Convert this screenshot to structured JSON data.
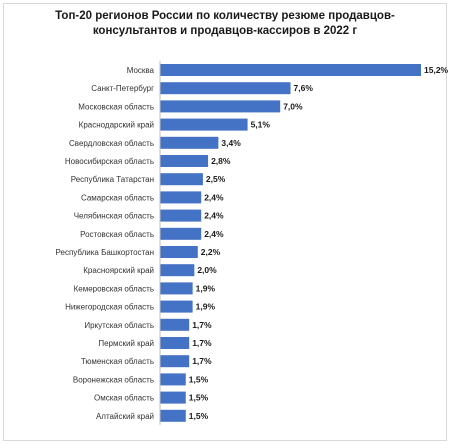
{
  "chart_data": {
    "type": "bar",
    "orientation": "horizontal",
    "title_lines": [
      "Топ-20 регионов России по количеству резюме продавцов-",
      "консультантов и продавцов-кассиров  в 2022 г"
    ],
    "categories": [
      "Москва",
      "Санкт-Петербург",
      "Московская область",
      "Краснодарский край",
      "Свердловская область",
      "Новосибирская область",
      "Республика Татарстан",
      "Самарская область",
      "Челябинская область",
      "Ростовская область",
      "Республика Башкортостан",
      "Красноярский край",
      "Кемеровская область",
      "Нижегородская область",
      "Иркутская  область",
      "Пермский край",
      "Тюменская область",
      "Воронежская область",
      "Омская область",
      "Алтайский край"
    ],
    "values": [
      15.2,
      7.6,
      7.0,
      5.1,
      3.4,
      2.8,
      2.5,
      2.4,
      2.4,
      2.4,
      2.2,
      2.0,
      1.9,
      1.9,
      1.7,
      1.7,
      1.7,
      1.5,
      1.5,
      1.5
    ],
    "value_labels": [
      "15,2%",
      "7,6%",
      "7,0%",
      "5,1%",
      "3,4%",
      "2,8%",
      "2,5%",
      "2,4%",
      "2,4%",
      "2,4%",
      "2,2%",
      "2,0%",
      "1,9%",
      "1,9%",
      "1,7%",
      "1,7%",
      "1,7%",
      "1,5%",
      "1,5%",
      "1,5%"
    ],
    "xlim": [
      0,
      15.2
    ],
    "grid": false,
    "legend": "none",
    "bar_color": "#4472c4"
  }
}
